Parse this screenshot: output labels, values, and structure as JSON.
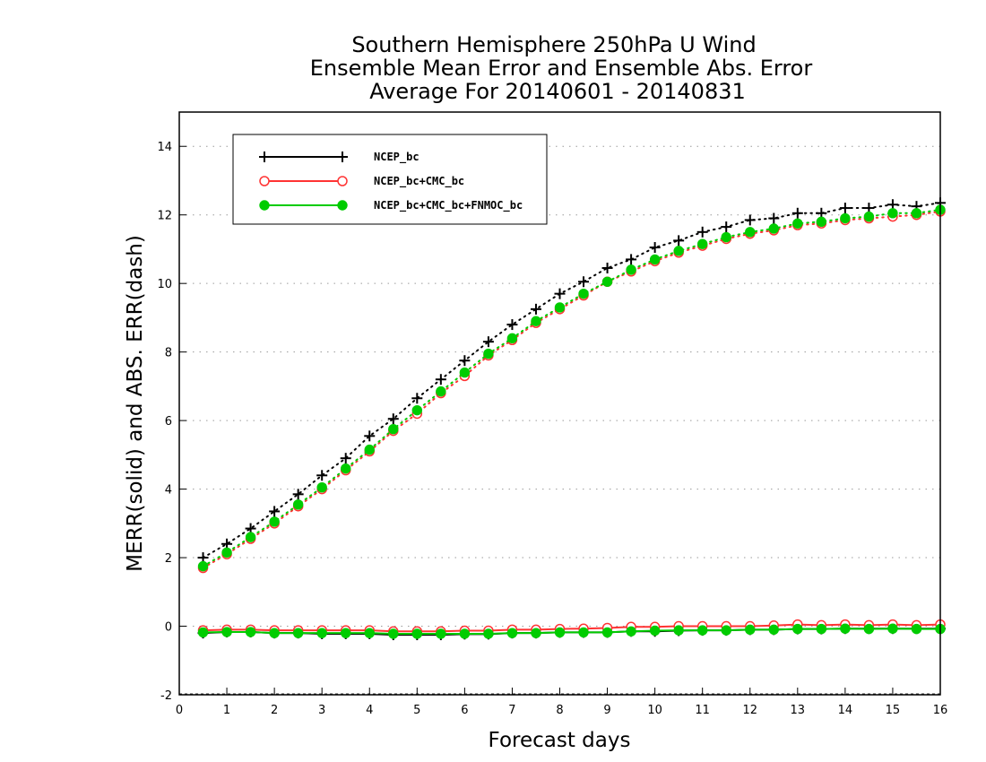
{
  "chart_data": {
    "type": "line",
    "title": [
      "Southern Hemisphere 250hPa U Wind",
      "Ensemble Mean Error and Ensemble Abs. Error",
      "Average For 20140601 - 20140831"
    ],
    "xlabel": "Forecast days",
    "ylabel": "MERR(solid) and ABS. ERR(dash)",
    "xlim": [
      0,
      16
    ],
    "ylim": [
      -2,
      15
    ],
    "xticks": [
      "0",
      "1",
      "2",
      "3",
      "4",
      "5",
      "6",
      "7",
      "8",
      "9",
      "10",
      "11",
      "12",
      "13",
      "14",
      "15",
      "16"
    ],
    "yticks": [
      "-2",
      "0",
      "2",
      "4",
      "6",
      "8",
      "10",
      "12",
      "14"
    ],
    "grid": "horizontal dotted",
    "legend_position": "top-left",
    "x": [
      0.5,
      1,
      1.5,
      2,
      2.5,
      3,
      3.5,
      4,
      4.5,
      5,
      5.5,
      6,
      6.5,
      7,
      7.5,
      8,
      8.5,
      9,
      9.5,
      10,
      10.5,
      11,
      11.5,
      12,
      12.5,
      13,
      13.5,
      14,
      14.5,
      15,
      15.5,
      16
    ],
    "series": [
      {
        "name": "NCEP_bc",
        "color": "#000000",
        "marker": "plus",
        "abs_err": [
          2.0,
          2.4,
          2.85,
          3.35,
          3.85,
          4.4,
          4.9,
          5.55,
          6.05,
          6.65,
          7.2,
          7.75,
          8.3,
          8.8,
          9.25,
          9.7,
          10.05,
          10.45,
          10.7,
          11.05,
          11.25,
          11.5,
          11.65,
          11.85,
          11.9,
          12.05,
          12.05,
          12.2,
          12.2,
          12.3,
          12.25,
          12.35
        ],
        "mean_err": [
          -0.2,
          -0.17,
          -0.17,
          -0.2,
          -0.2,
          -0.22,
          -0.22,
          -0.22,
          -0.25,
          -0.25,
          -0.25,
          -0.23,
          -0.23,
          -0.2,
          -0.2,
          -0.18,
          -0.18,
          -0.18,
          -0.15,
          -0.15,
          -0.13,
          -0.12,
          -0.12,
          -0.1,
          -0.1,
          -0.08,
          -0.08,
          -0.07,
          -0.07,
          -0.07,
          -0.07,
          -0.07
        ]
      },
      {
        "name": "NCEP_bc+CMC_bc",
        "color": "#ff3333",
        "marker": "open-circle",
        "abs_err": [
          1.7,
          2.1,
          2.55,
          3.0,
          3.5,
          4.0,
          4.55,
          5.1,
          5.7,
          6.2,
          6.8,
          7.3,
          7.9,
          8.35,
          8.85,
          9.25,
          9.65,
          10.05,
          10.35,
          10.65,
          10.9,
          11.1,
          11.3,
          11.45,
          11.55,
          11.7,
          11.75,
          11.85,
          11.9,
          11.95,
          12.0,
          12.1
        ],
        "mean_err": [
          -0.12,
          -0.1,
          -0.1,
          -0.12,
          -0.12,
          -0.12,
          -0.12,
          -0.12,
          -0.15,
          -0.15,
          -0.15,
          -0.13,
          -0.13,
          -0.1,
          -0.1,
          -0.08,
          -0.07,
          -0.05,
          -0.02,
          -0.02,
          0.0,
          0.0,
          0.0,
          0.0,
          0.02,
          0.05,
          0.03,
          0.05,
          0.03,
          0.05,
          0.03,
          0.05
        ]
      },
      {
        "name": "NCEP_bc+CMC_bc+FNMOC_bc",
        "color": "#00cc00",
        "marker": "filled-circle",
        "abs_err": [
          1.75,
          2.15,
          2.6,
          3.05,
          3.55,
          4.05,
          4.6,
          5.15,
          5.75,
          6.3,
          6.85,
          7.4,
          7.95,
          8.4,
          8.9,
          9.3,
          9.7,
          10.05,
          10.4,
          10.7,
          10.95,
          11.15,
          11.35,
          11.5,
          11.6,
          11.75,
          11.8,
          11.9,
          11.95,
          12.05,
          12.05,
          12.15
        ],
        "mean_err": [
          -0.18,
          -0.17,
          -0.17,
          -0.2,
          -0.2,
          -0.2,
          -0.2,
          -0.2,
          -0.22,
          -0.22,
          -0.22,
          -0.22,
          -0.22,
          -0.2,
          -0.2,
          -0.18,
          -0.18,
          -0.18,
          -0.15,
          -0.13,
          -0.12,
          -0.12,
          -0.12,
          -0.1,
          -0.1,
          -0.08,
          -0.08,
          -0.07,
          -0.08,
          -0.07,
          -0.08,
          -0.08
        ]
      }
    ]
  }
}
